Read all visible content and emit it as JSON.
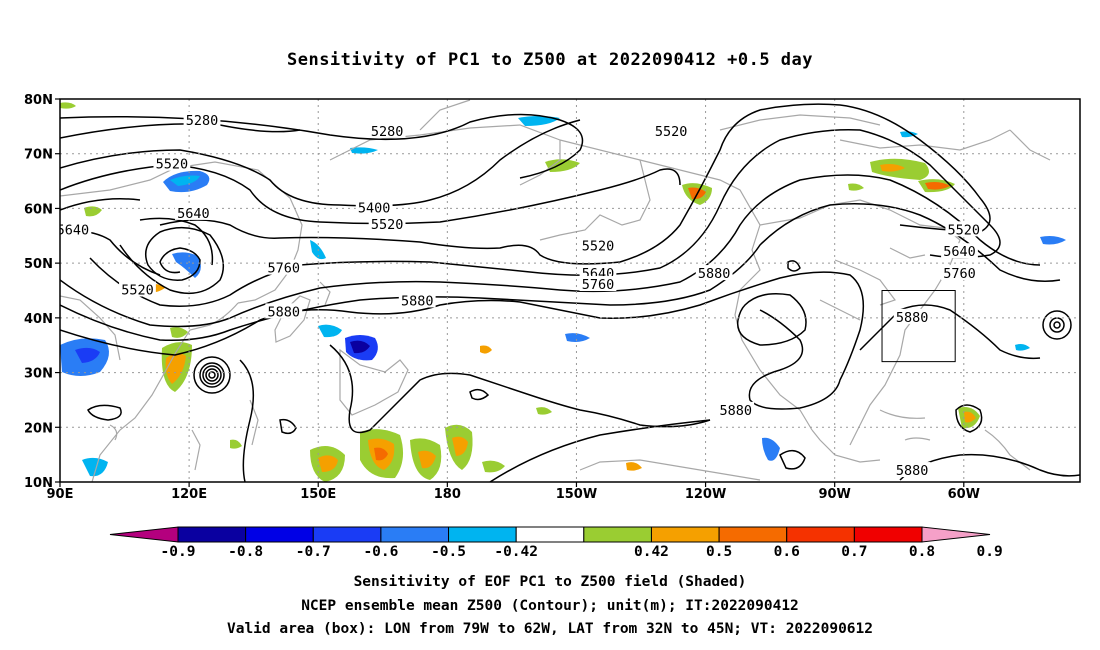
{
  "title": "Sensitivity of PC1 to Z500 at 2022090412 +0.5 day",
  "captions": [
    "Sensitivity of EOF PC1 to Z500 field (Shaded)",
    "NCEP ensemble mean Z500 (Contour); unit(m); IT:2022090412",
    "Valid area (box): LON from 79W to 62W, LAT from 32N to 45N; VT: 2022090612"
  ],
  "map": {
    "lon_labels": [
      "90E",
      "120E",
      "150E",
      "180",
      "150W",
      "120W",
      "90W",
      "60W"
    ],
    "lat_labels": [
      "80N",
      "70N",
      "60N",
      "50N",
      "40N",
      "30N",
      "20N",
      "10N"
    ],
    "valid_box": {
      "lon_min": -79,
      "lon_max": -62,
      "lat_min": 32,
      "lat_max": 45
    },
    "contour_labels": [
      {
        "text": "5280",
        "lon": 123,
        "lat": 76
      },
      {
        "text": "5280",
        "lon": 166,
        "lat": 74
      },
      {
        "text": "5520",
        "lon": 116,
        "lat": 68
      },
      {
        "text": "5640",
        "lon": 121,
        "lat": 59
      },
      {
        "text": "5640",
        "lon": 93,
        "lat": 56
      },
      {
        "text": "5400",
        "lon": 163,
        "lat": 60
      },
      {
        "text": "5520",
        "lon": 166,
        "lat": 57
      },
      {
        "text": "5760",
        "lon": 142,
        "lat": 49
      },
      {
        "text": "5880",
        "lon": 173,
        "lat": 43
      },
      {
        "text": "5880",
        "lon": 142,
        "lat": 41
      },
      {
        "text": "5520",
        "lon": 108,
        "lat": 45
      },
      {
        "text": "5520",
        "lon": -145,
        "lat": 53
      },
      {
        "text": "5640",
        "lon": -145,
        "lat": 48
      },
      {
        "text": "5760",
        "lon": -145,
        "lat": 46
      },
      {
        "text": "5880",
        "lon": -118,
        "lat": 48
      },
      {
        "text": "5520",
        "lon": -128,
        "lat": 74
      },
      {
        "text": "5520",
        "lon": -60,
        "lat": 56
      },
      {
        "text": "5640",
        "lon": -61,
        "lat": 52
      },
      {
        "text": "5760",
        "lon": -61,
        "lat": 48
      },
      {
        "text": "5880",
        "lon": -72,
        "lat": 40
      },
      {
        "text": "5880",
        "lon": -113,
        "lat": 23
      },
      {
        "text": "5880",
        "lon": -72,
        "lat": 12
      }
    ]
  },
  "colorbar": {
    "labels": [
      "-0.9",
      "-0.8",
      "-0.7",
      "-0.6",
      "-0.5",
      "-0.42",
      "0.42",
      "0.5",
      "0.6",
      "0.7",
      "0.8",
      "0.9"
    ],
    "colors": [
      "#b4007e",
      "#0a00a0",
      "#0000e6",
      "#1a3cf5",
      "#2a7df5",
      "#00b4f0",
      "#ffffff",
      "#9acd32",
      "#f5a000",
      "#f56b00",
      "#f53200",
      "#f00000",
      "#f5a0c8"
    ]
  }
}
